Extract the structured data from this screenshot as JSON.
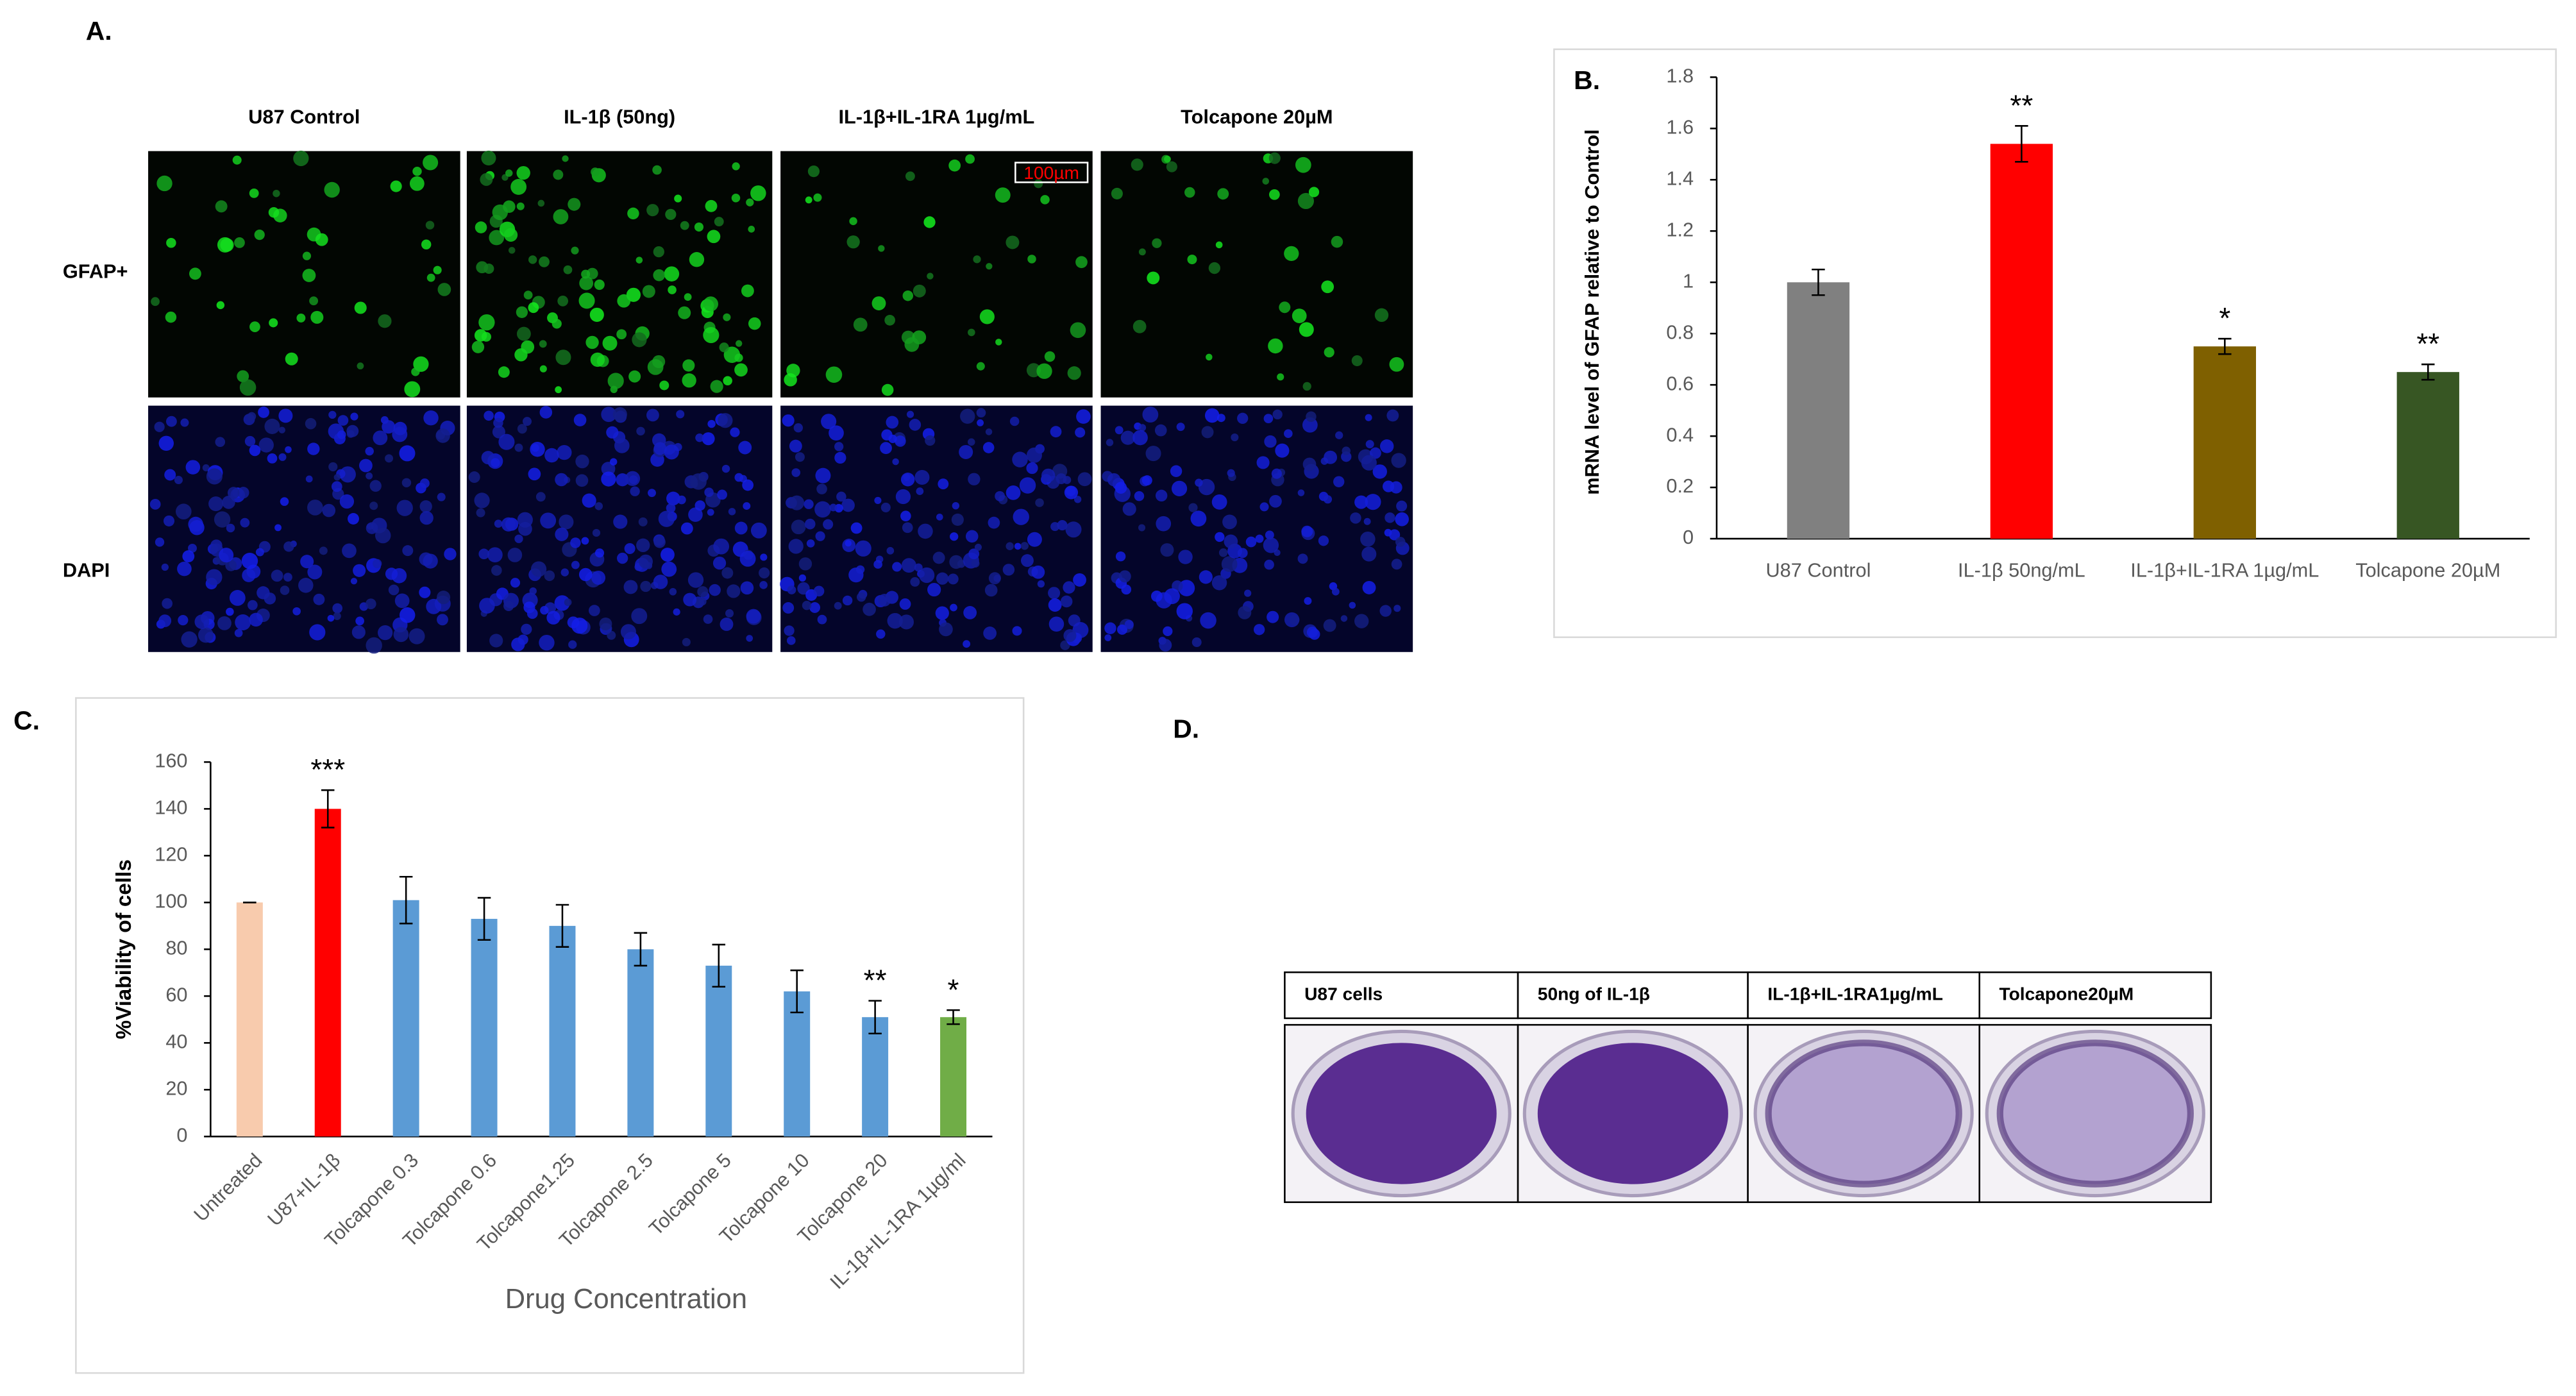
{
  "panel_labels": [
    "A.",
    "B.",
    "C.",
    "D."
  ],
  "microscopy": {
    "columns": [
      "U87 Control",
      "IL-1β (50ng)",
      "IL-1β+IL-1RA 1µg/mL",
      "Tolcapone 20µM"
    ],
    "rows": [
      "GFAP+",
      "DAPI"
    ],
    "scale_bar": "100µm"
  },
  "chart_data": [
    {
      "type": "bar",
      "y_label": "mRNA  level of GFAP relative to Control",
      "categories": [
        "U87 Control",
        "IL-1β 50ng/mL",
        "IL-1β+IL-1RA 1µg/mL",
        "Tolcapone 20µM"
      ],
      "values": [
        1.0,
        1.54,
        0.75,
        0.65
      ],
      "errors": [
        0.05,
        0.07,
        0.03,
        0.03
      ],
      "colors": [
        "#808080",
        "#ff0000",
        "#7f6000",
        "#375623"
      ],
      "annotations": [
        null,
        "**",
        "*",
        "**"
      ],
      "ylim": [
        0,
        1.8
      ],
      "yticks": [
        0,
        0.2,
        0.4,
        0.6,
        0.8,
        1,
        1.2,
        1.4,
        1.6,
        1.8
      ]
    },
    {
      "type": "bar",
      "x_label": "Drug Concentration",
      "y_label": "%Viability of cells",
      "categories": [
        "Untreated",
        "U87+IL-1β",
        "Tolcapone 0.3",
        "Tolcapone 0.6",
        "Tolcapone1.25",
        "Tolcapone 2.5",
        "Tolcapone 5",
        "Tolcapone 10",
        "Tolcapone 20",
        "IL-1β+IL-1RA 1µg/ml"
      ],
      "values": [
        100,
        140,
        101,
        93,
        90,
        80,
        73,
        62,
        51,
        51
      ],
      "errors": [
        0,
        8,
        10,
        9,
        9,
        7,
        9,
        9,
        7,
        3
      ],
      "colors": [
        "#f8cbad",
        "#ff0000",
        "#5b9bd5",
        "#5b9bd5",
        "#5b9bd5",
        "#5b9bd5",
        "#5b9bd5",
        "#5b9bd5",
        "#5b9bd5",
        "#70ad47"
      ],
      "annotations": [
        null,
        "***",
        null,
        null,
        null,
        null,
        null,
        null,
        "**",
        "*"
      ],
      "ylim": [
        0,
        160
      ],
      "yticks": [
        0,
        20,
        40,
        60,
        80,
        100,
        120,
        140,
        160
      ],
      "rotate_labels": true
    }
  ],
  "colony_assay": {
    "labels": [
      "U87 cells",
      "50ng of IL-1β",
      "IL-1β+IL-1RA1µg/mL",
      "Tolcapone20µM"
    ]
  }
}
